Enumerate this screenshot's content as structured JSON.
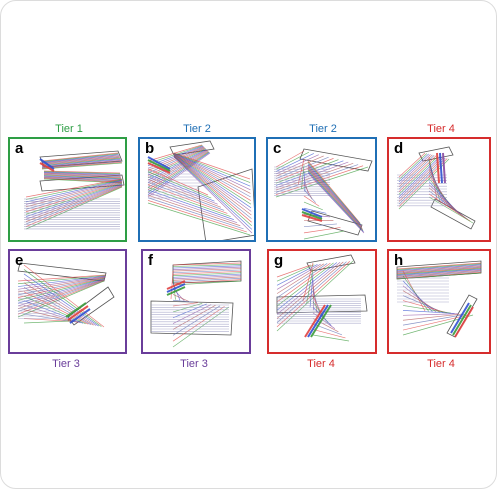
{
  "figure": {
    "panels": [
      {
        "letter": "a",
        "tier": "Tier 1",
        "tier_position": "top",
        "color": "#2e9e45"
      },
      {
        "letter": "b",
        "tier": "Tier 2",
        "tier_position": "top",
        "color": "#1f6fb5"
      },
      {
        "letter": "c",
        "tier": "Tier 2",
        "tier_position": "top",
        "color": "#1f6fb5"
      },
      {
        "letter": "d",
        "tier": "Tier 4",
        "tier_position": "top",
        "color": "#d62d2d"
      },
      {
        "letter": "e",
        "tier": "Tier 3",
        "tier_position": "bottom",
        "color": "#6a3d9a"
      },
      {
        "letter": "f",
        "tier": "Tier 3",
        "tier_position": "bottom",
        "color": "#6a3d9a"
      },
      {
        "letter": "g",
        "tier": "Tier 4",
        "tier_position": "bottom",
        "color": "#d62d2d"
      },
      {
        "letter": "h",
        "tier": "Tier 4",
        "tier_position": "bottom",
        "color": "#d62d2d"
      }
    ]
  }
}
